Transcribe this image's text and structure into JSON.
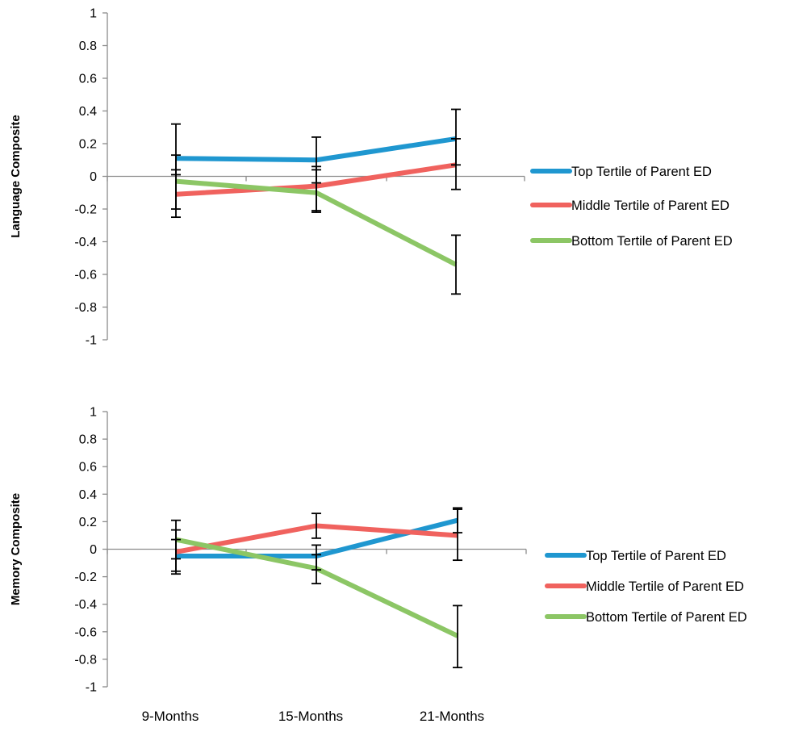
{
  "chart_data": [
    {
      "type": "line",
      "ylabel": "Language Composite",
      "ylim": [
        -1,
        1
      ],
      "ytick_labels": [
        "1",
        "0.8",
        "0.6",
        "0.4",
        "0.2",
        "0",
        "-0.2",
        "-0.4",
        "-0.6",
        "-0.8",
        "-1"
      ],
      "categories": [
        "9-Months",
        "15-Months",
        "21-Months"
      ],
      "grid": false,
      "legend_position": "right",
      "series": [
        {
          "name": "Top Tertile of Parent ED",
          "color": "#1F97D0",
          "values": [
            0.11,
            0.1,
            0.23
          ],
          "err_upper": [
            0.32,
            0.24,
            0.41
          ],
          "err_lower": [
            0.01,
            -0.04,
            0.07
          ]
        },
        {
          "name": "Middle Tertile of Parent ED",
          "color": "#F0625E",
          "values": [
            -0.11,
            -0.06,
            0.07
          ],
          "err_upper": [
            0.04,
            0.06,
            0.23
          ],
          "err_lower": [
            -0.25,
            -0.21,
            -0.08
          ]
        },
        {
          "name": "Bottom Tertile of Parent ED",
          "color": "#8CC665",
          "values": [
            -0.03,
            -0.1,
            -0.54
          ],
          "err_upper": [
            0.13,
            0.04,
            -0.36
          ],
          "err_lower": [
            -0.2,
            -0.22,
            -0.72
          ]
        }
      ]
    },
    {
      "type": "line",
      "ylabel": "Memory Composite",
      "ylim": [
        -1,
        1
      ],
      "ytick_labels": [
        "1",
        "0.8",
        "0.6",
        "0.4",
        "0.2",
        "0",
        "-0.2",
        "-0.4",
        "-0.6",
        "-0.8",
        "-1"
      ],
      "categories": [
        "9-Months",
        "15-Months",
        "21-Months"
      ],
      "grid": false,
      "legend_position": "right",
      "series": [
        {
          "name": "Top Tertile of Parent ED",
          "color": "#1F97D0",
          "values": [
            -0.05,
            -0.05,
            0.21
          ],
          "err_upper": [
            0.07,
            0.03,
            0.3
          ],
          "err_lower": [
            -0.18,
            -0.15,
            0.12
          ]
        },
        {
          "name": "Middle Tertile of Parent ED",
          "color": "#F0625E",
          "values": [
            -0.02,
            0.17,
            0.1
          ],
          "err_upper": [
            0.14,
            0.26,
            0.29
          ],
          "err_lower": [
            -0.16,
            0.08,
            -0.08
          ]
        },
        {
          "name": "Bottom Tertile of Parent ED",
          "color": "#8CC665",
          "values": [
            0.07,
            -0.14,
            -0.63
          ],
          "err_upper": [
            0.21,
            -0.04,
            -0.41
          ],
          "err_lower": [
            -0.07,
            -0.25,
            -0.86
          ]
        }
      ]
    }
  ]
}
